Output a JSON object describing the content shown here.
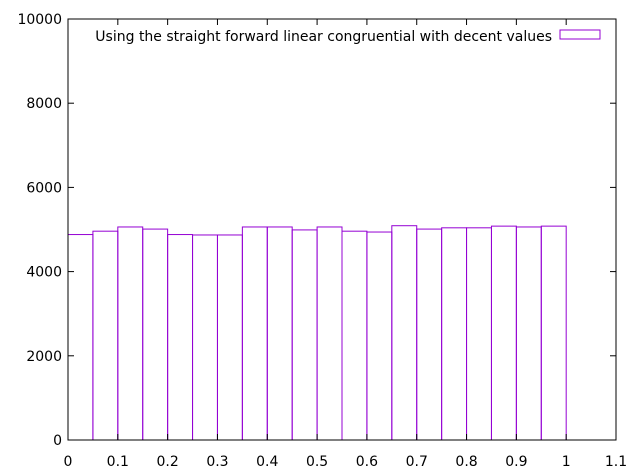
{
  "chart_data": {
    "type": "bar",
    "x": [
      0.0,
      0.05,
      0.1,
      0.15,
      0.2,
      0.25,
      0.3,
      0.35,
      0.4,
      0.45,
      0.5,
      0.55,
      0.6,
      0.65,
      0.7,
      0.75,
      0.8,
      0.85,
      0.9,
      0.95
    ],
    "bin_width": 0.05,
    "series": [
      {
        "name": "Using the straight forward linear congruential with decent values",
        "color": "#9400d3",
        "values": [
          4880,
          4960,
          5060,
          5010,
          4880,
          4870,
          4870,
          5060,
          5060,
          4990,
          5060,
          4960,
          4940,
          5090,
          5010,
          5040,
          5040,
          5080,
          5060,
          5080
        ]
      }
    ],
    "xlim": [
      0,
      1.1
    ],
    "ylim": [
      0,
      10000
    ],
    "xticks": [
      "0",
      "0.1",
      "0.2",
      "0.3",
      "0.4",
      "0.5",
      "0.6",
      "0.7",
      "0.8",
      "0.9",
      "1",
      "1.1"
    ],
    "yticks": [
      "0",
      "2000",
      "4000",
      "6000",
      "8000",
      "10000"
    ],
    "legend_position": "top-right",
    "grid": false,
    "title": "",
    "xlabel": "",
    "ylabel": ""
  }
}
